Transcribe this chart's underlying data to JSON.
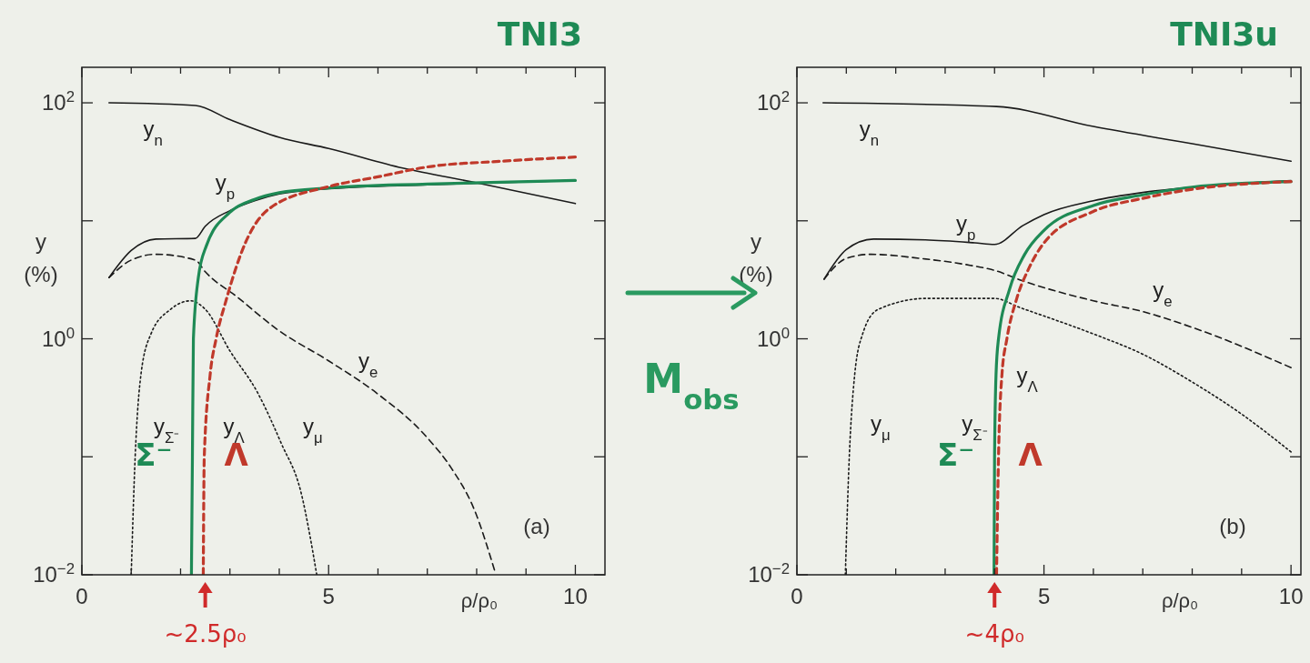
{
  "chart_data": [
    {
      "type": "line",
      "title": "TNI3",
      "xlabel": "ρ/ρ₀",
      "ylabel": "y (%)",
      "log": "y",
      "xlim": [
        0,
        10.6
      ],
      "ylim": [
        0.01,
        200
      ],
      "xticks": [
        0,
        {
          "value": 1,
          "label": null
        },
        {
          "value": 2,
          "label": null
        },
        {
          "value": 3,
          "label": null
        },
        {
          "value": 4,
          "label": null
        },
        5,
        {
          "value": 6,
          "label": null
        },
        {
          "value": 7,
          "label": null
        },
        {
          "value": 8,
          "label": null
        },
        {
          "value": 9,
          "label": null
        },
        10
      ],
      "yticks": [
        {
          "value": 0.01,
          "label": "10$^{−2}$"
        },
        {
          "value": 0.1,
          "label": null
        },
        {
          "value": 1,
          "label": "10$^{0}$"
        },
        {
          "value": 10,
          "label": null
        },
        {
          "value": 100,
          "label": "10$^{2}$"
        }
      ],
      "series": [
        {
          "color": "#1a1a1a",
          "line_style": "solid",
          "x": [
            0.55,
            2.3,
            3,
            4,
            5,
            6.5,
            8,
            10
          ],
          "values": [
            100,
            95,
            72,
            51,
            41,
            28,
            21,
            14
          ]
        },
        {
          "color": "#1a1a1a",
          "line_style": "solid",
          "x": [
            0.55,
            1,
            1.5,
            2.3,
            2.5,
            3,
            3.5,
            4,
            5,
            7,
            10
          ],
          "values": [
            3.3,
            5.6,
            7,
            7.1,
            9,
            12.2,
            14.8,
            16.9,
            18.7,
            20.2,
            22
          ]
        },
        {
          "color": "#1a1a1a",
          "line_style": "dashed",
          "x": [
            0.55,
            1,
            1.5,
            2.3,
            2.5,
            3.16,
            3.96,
            5,
            5.96,
            7,
            7.48,
            7.96,
            8.36
          ],
          "values": [
            3.3,
            4.65,
            5.2,
            4.65,
            3.7,
            2.24,
            1.2,
            0.65,
            0.35,
            0.145,
            0.081,
            0.035,
            0.011
          ]
        },
        {
          "color": "#1a1a1a",
          "line_style": "dotted",
          "x": [
            1,
            1.08,
            1.2,
            1.4,
            1.8,
            2.2,
            2.5,
            3,
            3.56,
            4.04,
            4.44,
            4.76
          ],
          "values": [
            0.01,
            0.1,
            0.51,
            1.1,
            1.78,
            2.1,
            1.78,
            0.79,
            0.35,
            0.13,
            0.05,
            0.01
          ]
        },
        {
          "name": "Σ⁻",
          "color": "#1e8a55",
          "line_style": "solid",
          "x": [
            2.22,
            2.24,
            2.26,
            2.36,
            2.52,
            3,
            3.5,
            4,
            5,
            7,
            10
          ],
          "values": [
            0.01,
            0.1,
            1,
            3.3,
            6.1,
            11.8,
            15.2,
            17.3,
            19,
            20.5,
            22
          ]
        },
        {
          "name": "Λ",
          "color": "#c0392b",
          "line_style": "dashed",
          "x": [
            2.46,
            2.48,
            2.6,
            2.72,
            2.92,
            3.32,
            3.8,
            5,
            6,
            7,
            8.5,
            10
          ],
          "values": [
            0.01,
            0.1,
            0.5,
            1,
            2.1,
            6.6,
            12.7,
            19.5,
            23.6,
            28.6,
            32,
            34.7
          ]
        }
      ],
      "annotations": [
        "(a)",
        "y$_{n}$",
        "y$_{p}$",
        "y$_{e}$",
        "y$_{Σ⁻}$",
        "y$_{Λ}$",
        "y$_{μ}$",
        {
          "text": "~2.5ρ₀",
          "x": 2.5,
          "y": 0.01
        }
      ]
    },
    {
      "type": "line",
      "title": "TNI3u",
      "xlabel": "ρ/ρ₀",
      "ylabel": "y (%)",
      "log": "y",
      "xlim": [
        0,
        10.2
      ],
      "ylim": [
        0.01,
        200
      ],
      "xticks": [
        0,
        {
          "value": 1,
          "label": null
        },
        {
          "value": 2,
          "label": null
        },
        {
          "value": 3,
          "label": null
        },
        {
          "value": 4,
          "label": null
        },
        5,
        {
          "value": 6,
          "label": null
        },
        {
          "value": 7,
          "label": null
        },
        {
          "value": 8,
          "label": null
        },
        {
          "value": 9,
          "label": null
        },
        10
      ],
      "yticks": [
        {
          "value": 0.01,
          "label": "10$^{−2}$"
        },
        {
          "value": 0.1,
          "label": null
        },
        {
          "value": 1,
          "label": "10$^{0}$"
        },
        {
          "value": 10,
          "label": null
        },
        {
          "value": 100,
          "label": "10$^{2}$"
        }
      ],
      "series": [
        {
          "color": "#1a1a1a",
          "line_style": "solid",
          "x": [
            0.53,
            4.04,
            6,
            8,
            10
          ],
          "values": [
            100,
            93,
            63,
            45,
            32
          ]
        },
        {
          "color": "#1a1a1a",
          "line_style": "solid",
          "x": [
            0.55,
            1,
            1.55,
            2.6,
            3.6,
            4,
            4.57,
            5,
            6,
            7,
            8,
            10
          ],
          "values": [
            3.2,
            5.7,
            7,
            6.9,
            6.5,
            6.3,
            9.1,
            11.3,
            14.8,
            17.4,
            19.3,
            21.9
          ]
        },
        {
          "color": "#1a1a1a",
          "line_style": "dashed",
          "x": [
            0.55,
            1,
            1.5,
            2.5,
            3.5,
            4,
            4.57,
            6,
            7,
            8,
            10
          ],
          "values": [
            3.2,
            4.8,
            5.2,
            4.8,
            4.2,
            3.8,
            3.1,
            2.1,
            1.7,
            1.25,
            0.57
          ]
        },
        {
          "color": "#1a1a1a",
          "line_style": "dotted",
          "x": [
            0.98,
            1.06,
            1.17,
            1.33,
            1.64,
            2.62,
            4,
            4.5,
            6,
            7,
            8,
            9,
            10
          ],
          "values": [
            0.01,
            0.1,
            0.5,
            1.1,
            1.77,
            2.2,
            2.2,
            1.85,
            1.1,
            0.74,
            0.43,
            0.23,
            0.11
          ]
        },
        {
          "name": "Σ⁻",
          "color": "#1e8a55",
          "line_style": "solid",
          "x": [
            3.99,
            4.0,
            4.03,
            4.08,
            4.3,
            4.61,
            5,
            6,
            7,
            8,
            10
          ],
          "values": [
            0.01,
            0.1,
            0.5,
            1,
            2.6,
            5.2,
            8.3,
            13.5,
            16.6,
            19.3,
            21.5
          ]
        },
        {
          "name": "Λ",
          "color": "#c0392b",
          "line_style": "dashed",
          "x": [
            4.04,
            4.08,
            4.15,
            4.25,
            4.45,
            4.7,
            5,
            6,
            7,
            8,
            10
          ],
          "values": [
            0.01,
            0.1,
            0.5,
            1,
            2.2,
            4,
            6.5,
            12,
            15.5,
            18.5,
            21.5
          ]
        }
      ],
      "annotations": [
        "(b)",
        "y$_{n}$",
        "y$_{p}$",
        "y$_{e}$",
        "y$_{Σ⁻}$",
        "y$_{Λ}$",
        "y$_{μ}$",
        "M$_{obs}$",
        {
          "text": "~4ρ₀",
          "x": 4,
          "y": 0.01
        }
      ]
    }
  ]
}
